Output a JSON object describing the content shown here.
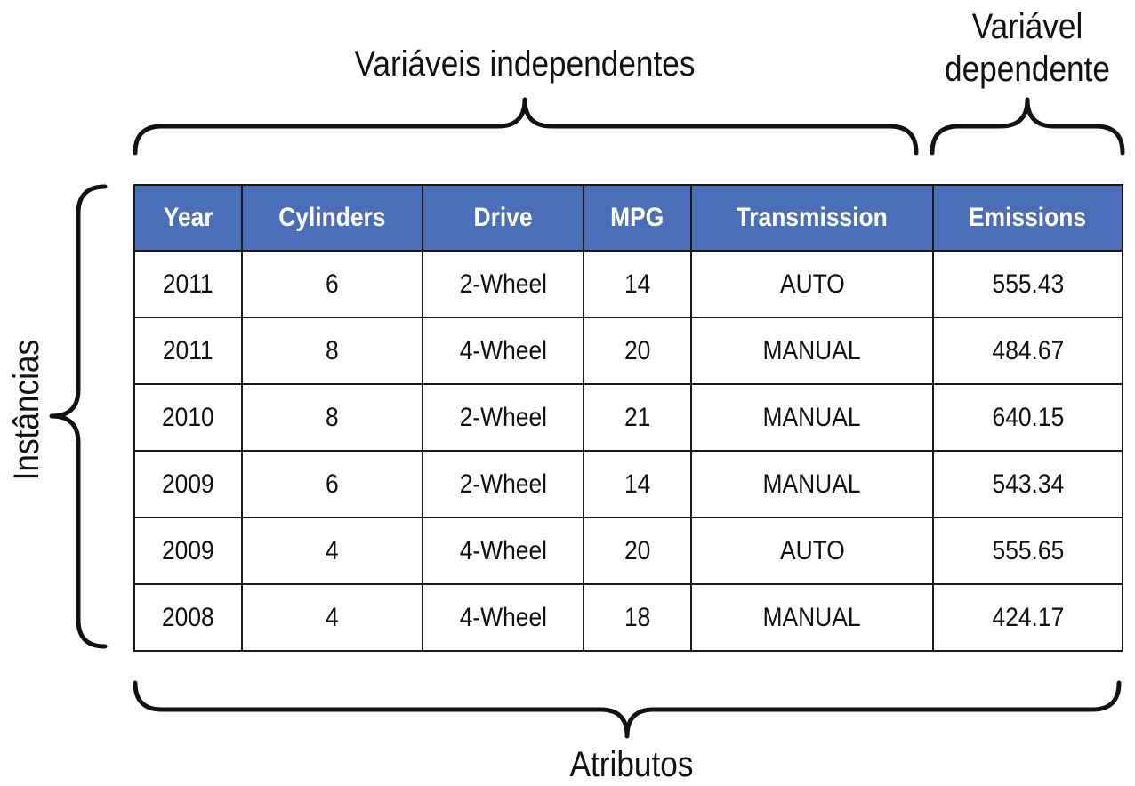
{
  "labels": {
    "independent": "Variáveis independentes",
    "dependent_line1": "Variável",
    "dependent_line2": "dependente",
    "instances": "Instâncias",
    "attributes": "Atributos"
  },
  "table": {
    "header_color": "#4a6fb8",
    "columns": [
      "Year",
      "Cylinders",
      "Drive",
      "MPG",
      "Transmission",
      "Emissions"
    ],
    "rows": [
      [
        "2011",
        "6",
        "2-Wheel",
        "14",
        "AUTO",
        "555.43"
      ],
      [
        "2011",
        "8",
        "4-Wheel",
        "20",
        "MANUAL",
        "484.67"
      ],
      [
        "2010",
        "8",
        "2-Wheel",
        "21",
        "MANUAL",
        "640.15"
      ],
      [
        "2009",
        "6",
        "2-Wheel",
        "14",
        "MANUAL",
        "543.34"
      ],
      [
        "2009",
        "4",
        "4-Wheel",
        "20",
        "AUTO",
        "555.65"
      ],
      [
        "2008",
        "4",
        "4-Wheel",
        "18",
        "MANUAL",
        "424.17"
      ]
    ]
  }
}
